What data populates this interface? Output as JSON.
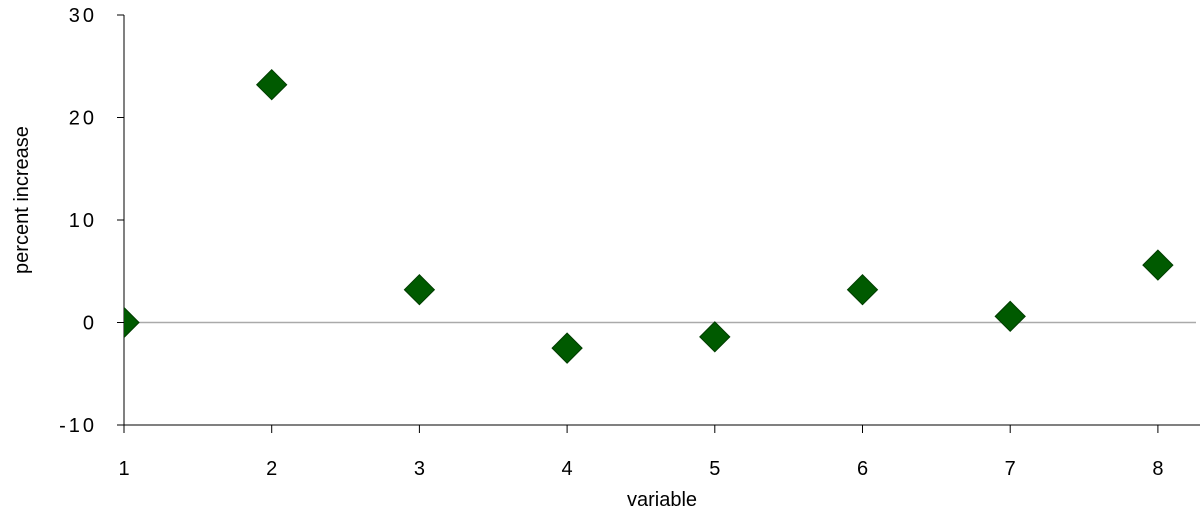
{
  "chart_data": {
    "type": "scatter",
    "title": "",
    "xlabel": "variable",
    "ylabel": "percent increase",
    "xlim": [
      1,
      8.3
    ],
    "ylim": [
      -10,
      30
    ],
    "x_ticks": [
      "1",
      "2",
      "3",
      "4",
      "5",
      "6",
      "7",
      "8"
    ],
    "y_ticks": [
      "30",
      "20",
      "10",
      "0",
      "-10"
    ],
    "grid": false,
    "zero_line": true,
    "marker": "diamond",
    "colors": {
      "marker": "#005a00",
      "marker_edge": "#003c00",
      "axis": "#000000",
      "zero_line": "#aaaaaa"
    },
    "x": [
      1,
      2,
      3,
      4,
      5,
      6,
      7,
      8
    ],
    "y": [
      0,
      23.2,
      3.2,
      -2.5,
      -1.4,
      3.2,
      0.6,
      5.6
    ]
  }
}
